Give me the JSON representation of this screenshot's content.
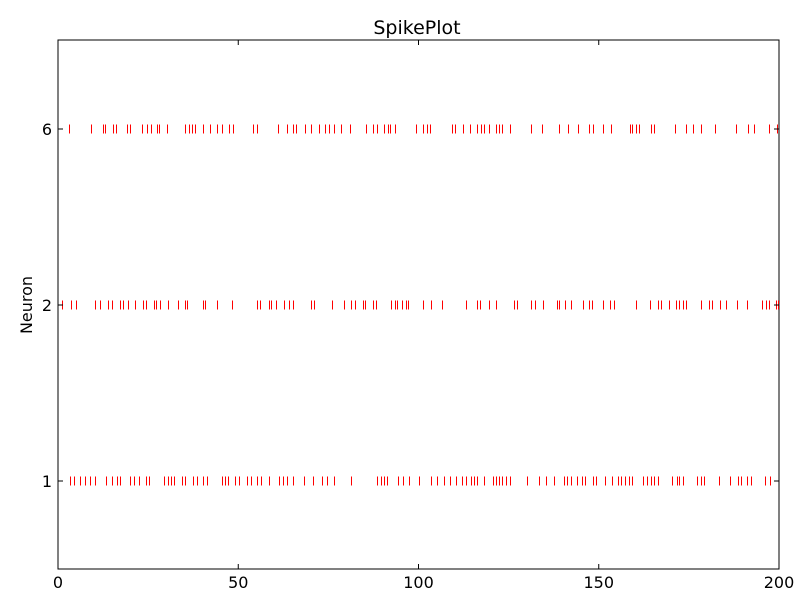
{
  "chart_data": {
    "type": "raster",
    "title": "SpikePlot",
    "xlabel": "",
    "ylabel": "Neuron",
    "xlim": [
      0,
      200
    ],
    "x_ticks": [
      0,
      50,
      100,
      150,
      200
    ],
    "grid": false,
    "spike_color": "#ff0000",
    "series": [
      {
        "name": "6",
        "spikes": [
          3.1,
          9.2,
          12.5,
          13.1,
          15.2,
          16.1,
          19.2,
          19.9,
          23.4,
          24.6,
          25.8,
          27.4,
          28.1,
          30.2,
          35.3,
          36.4,
          37.2,
          38.1,
          40.3,
          42.1,
          44.2,
          45.6,
          47.3,
          48.5,
          54.2,
          55.1,
          61.1,
          63.5,
          65.2,
          66.1,
          68.4,
          70.1,
          72.5,
          74.2,
          75.3,
          76.5,
          78.4,
          81.1,
          85.5,
          87.4,
          88.6,
          90.3,
          91.5,
          92.2,
          93.4,
          99.4,
          101.3,
          102.3,
          103.2,
          109.2,
          110.1,
          112.3,
          114.4,
          116.2,
          117.3,
          118.1,
          119.5,
          121.4,
          122.4,
          123.2,
          125.4,
          131.3,
          134.2,
          139.1,
          141.4,
          144.3,
          147.2,
          148.4,
          151.3,
          153.5,
          158.6,
          159.2,
          160.4,
          161.3,
          164.6,
          165.3,
          171.2,
          174.1,
          176.2,
          178.5,
          182.3,
          188.1,
          191.3,
          193.2,
          197.2,
          199.5
        ]
      },
      {
        "name": "2",
        "spikes": [
          1.2,
          3.5,
          4.9,
          10.4,
          11.6,
          13.9,
          15.1,
          17.3,
          18.1,
          19.5,
          21.3,
          23.6,
          24.3,
          26.5,
          27.2,
          28.4,
          30.5,
          33.2,
          35.1,
          35.8,
          40.2,
          40.8,
          44.1,
          48.3,
          55.2,
          55.9,
          58.4,
          59.1,
          60.5,
          62.6,
          64.2,
          65.3,
          70.1,
          70.9,
          76.1,
          79.2,
          81.3,
          82.4,
          84.5,
          85.2,
          87.3,
          88.1,
          92.4,
          93.6,
          94.1,
          95.3,
          96.5,
          97.2,
          101.3,
          103.4,
          106.4,
          113.2,
          116.3,
          117.1,
          119.6,
          121.4,
          126.5,
          127.2,
          131.1,
          132.3,
          134.6,
          138.3,
          139.1,
          140.5,
          142.3,
          145.6,
          147.2,
          148.1,
          151.3,
          153.2,
          154.1,
          160.2,
          164.3,
          166.5,
          167.3,
          169.6,
          171.5,
          172.3,
          173.4,
          174.2,
          178.3,
          180.5,
          181.3,
          183.6,
          185.2,
          188.3,
          191.2,
          195.4,
          196.5,
          197.2,
          199.1,
          199.7
        ]
      },
      {
        "name": "1",
        "spikes": [
          3.4,
          4.5,
          6.1,
          7.6,
          9.0,
          10.2,
          13.4,
          15.1,
          16.4,
          17.3,
          20.1,
          21.2,
          22.4,
          24.5,
          25.3,
          29.5,
          30.6,
          31.4,
          32.2,
          34.3,
          35.1,
          37.4,
          38.5,
          40.2,
          41.3,
          45.6,
          46.4,
          47.2,
          49.1,
          50.3,
          52.4,
          53.6,
          55.2,
          56.3,
          58.5,
          61.2,
          62.4,
          63.6,
          65.1,
          68.3,
          70.6,
          73.2,
          74.5,
          76.6,
          81.4,
          88.5,
          89.6,
          90.3,
          91.4,
          94.4,
          95.6,
          97.3,
          100.1,
          103.4,
          105.1,
          107.2,
          108.6,
          110.3,
          112.1,
          113.2,
          114.5,
          115.3,
          116.1,
          118.2,
          120.6,
          121.4,
          122.3,
          123.2,
          124.4,
          125.3,
          130.2,
          133.4,
          135.5,
          137.6,
          140.3,
          141.2,
          142.4,
          144.1,
          145.3,
          146.2,
          148.5,
          149.3,
          151.6,
          153.7,
          155.3,
          156.2,
          157.4,
          158.3,
          159.1,
          162.3,
          163.4,
          164.5,
          165.2,
          166.3,
          170.4,
          171.6,
          172.2,
          173.3,
          177.2,
          178.4,
          179.1,
          183.3,
          186.5,
          188.6,
          189.4,
          191.2,
          192.3,
          196.2,
          197.4
        ]
      }
    ]
  }
}
